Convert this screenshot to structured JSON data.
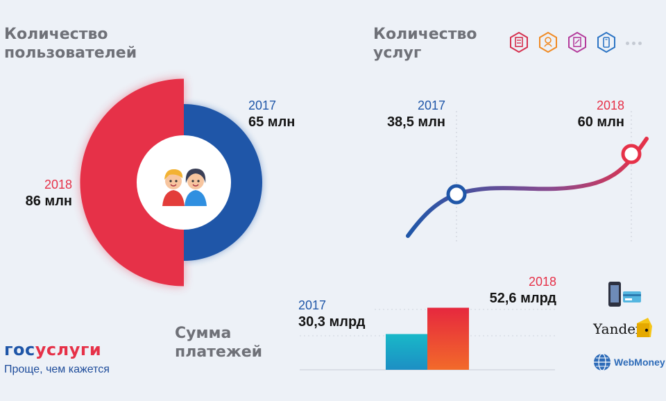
{
  "users": {
    "title": "Количество\nпользователей",
    "y2017": "2017",
    "v2017": "65 млн",
    "y2018": "2018",
    "v2018": "86 млн"
  },
  "services": {
    "title": "Количество\nуслуг",
    "y2017": "2017",
    "v2017": "38,5 млн",
    "y2018": "2018",
    "v2018": "60 млн",
    "icons": [
      "document-icon",
      "baby-icon",
      "certificate-icon",
      "phone-icon"
    ],
    "icon_colors": [
      "#d6314f",
      "#f08a23",
      "#b43c9c",
      "#2c74c4"
    ]
  },
  "payments": {
    "title": "Сумма\nплатежей",
    "y2017": "2017",
    "v2017": "30,3 млрд",
    "y2018": "2018",
    "v2018": "52,6 млрд"
  },
  "brand": {
    "gos": "гос",
    "uslugi": "услуги",
    "tagline": "Проще, чем кажется"
  },
  "payment_methods": {
    "yandex": "Yandex",
    "webmoney": "WebMoney"
  },
  "colors": {
    "blue": "#1f56a8",
    "red": "#e63148",
    "teal": "#19b8c8",
    "orange": "#f2542d"
  },
  "chart_data": [
    {
      "type": "pie",
      "labels": [
        "2017",
        "2018"
      ],
      "values": [
        65,
        86
      ],
      "unit": "млн",
      "title": "Количество\nпользователей"
    },
    {
      "type": "line",
      "x": [
        "2017",
        "2018"
      ],
      "values": [
        38.5,
        60
      ],
      "unit": "млн",
      "title": "Количество\nуслуг"
    },
    {
      "type": "bar",
      "categories": [
        "2017",
        "2018"
      ],
      "values": [
        30.3,
        52.6
      ],
      "unit": "млрд",
      "title": "Сумма\nплатежей"
    }
  ]
}
